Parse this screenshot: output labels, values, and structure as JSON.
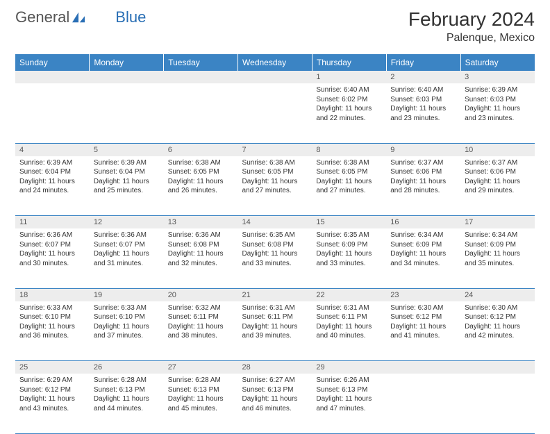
{
  "header": {
    "logo_text_1": "General",
    "logo_text_2": "Blue",
    "month_title": "February 2024",
    "location": "Palenque, Mexico"
  },
  "colors": {
    "header_bg": "#3b84c4",
    "header_text": "#ffffff",
    "daynum_bg": "#ededed",
    "border": "#3b84c4",
    "logo_blue": "#2a6fb5"
  },
  "weekday_labels": [
    "Sunday",
    "Monday",
    "Tuesday",
    "Wednesday",
    "Thursday",
    "Friday",
    "Saturday"
  ],
  "weeks": [
    {
      "days": [
        {
          "num": "",
          "sunrise": "",
          "sunset": "",
          "daylight": ""
        },
        {
          "num": "",
          "sunrise": "",
          "sunset": "",
          "daylight": ""
        },
        {
          "num": "",
          "sunrise": "",
          "sunset": "",
          "daylight": ""
        },
        {
          "num": "",
          "sunrise": "",
          "sunset": "",
          "daylight": ""
        },
        {
          "num": "1",
          "sunrise": "Sunrise: 6:40 AM",
          "sunset": "Sunset: 6:02 PM",
          "daylight": "Daylight: 11 hours and 22 minutes."
        },
        {
          "num": "2",
          "sunrise": "Sunrise: 6:40 AM",
          "sunset": "Sunset: 6:03 PM",
          "daylight": "Daylight: 11 hours and 23 minutes."
        },
        {
          "num": "3",
          "sunrise": "Sunrise: 6:39 AM",
          "sunset": "Sunset: 6:03 PM",
          "daylight": "Daylight: 11 hours and 23 minutes."
        }
      ]
    },
    {
      "days": [
        {
          "num": "4",
          "sunrise": "Sunrise: 6:39 AM",
          "sunset": "Sunset: 6:04 PM",
          "daylight": "Daylight: 11 hours and 24 minutes."
        },
        {
          "num": "5",
          "sunrise": "Sunrise: 6:39 AM",
          "sunset": "Sunset: 6:04 PM",
          "daylight": "Daylight: 11 hours and 25 minutes."
        },
        {
          "num": "6",
          "sunrise": "Sunrise: 6:38 AM",
          "sunset": "Sunset: 6:05 PM",
          "daylight": "Daylight: 11 hours and 26 minutes."
        },
        {
          "num": "7",
          "sunrise": "Sunrise: 6:38 AM",
          "sunset": "Sunset: 6:05 PM",
          "daylight": "Daylight: 11 hours and 27 minutes."
        },
        {
          "num": "8",
          "sunrise": "Sunrise: 6:38 AM",
          "sunset": "Sunset: 6:05 PM",
          "daylight": "Daylight: 11 hours and 27 minutes."
        },
        {
          "num": "9",
          "sunrise": "Sunrise: 6:37 AM",
          "sunset": "Sunset: 6:06 PM",
          "daylight": "Daylight: 11 hours and 28 minutes."
        },
        {
          "num": "10",
          "sunrise": "Sunrise: 6:37 AM",
          "sunset": "Sunset: 6:06 PM",
          "daylight": "Daylight: 11 hours and 29 minutes."
        }
      ]
    },
    {
      "days": [
        {
          "num": "11",
          "sunrise": "Sunrise: 6:36 AM",
          "sunset": "Sunset: 6:07 PM",
          "daylight": "Daylight: 11 hours and 30 minutes."
        },
        {
          "num": "12",
          "sunrise": "Sunrise: 6:36 AM",
          "sunset": "Sunset: 6:07 PM",
          "daylight": "Daylight: 11 hours and 31 minutes."
        },
        {
          "num": "13",
          "sunrise": "Sunrise: 6:36 AM",
          "sunset": "Sunset: 6:08 PM",
          "daylight": "Daylight: 11 hours and 32 minutes."
        },
        {
          "num": "14",
          "sunrise": "Sunrise: 6:35 AM",
          "sunset": "Sunset: 6:08 PM",
          "daylight": "Daylight: 11 hours and 33 minutes."
        },
        {
          "num": "15",
          "sunrise": "Sunrise: 6:35 AM",
          "sunset": "Sunset: 6:09 PM",
          "daylight": "Daylight: 11 hours and 33 minutes."
        },
        {
          "num": "16",
          "sunrise": "Sunrise: 6:34 AM",
          "sunset": "Sunset: 6:09 PM",
          "daylight": "Daylight: 11 hours and 34 minutes."
        },
        {
          "num": "17",
          "sunrise": "Sunrise: 6:34 AM",
          "sunset": "Sunset: 6:09 PM",
          "daylight": "Daylight: 11 hours and 35 minutes."
        }
      ]
    },
    {
      "days": [
        {
          "num": "18",
          "sunrise": "Sunrise: 6:33 AM",
          "sunset": "Sunset: 6:10 PM",
          "daylight": "Daylight: 11 hours and 36 minutes."
        },
        {
          "num": "19",
          "sunrise": "Sunrise: 6:33 AM",
          "sunset": "Sunset: 6:10 PM",
          "daylight": "Daylight: 11 hours and 37 minutes."
        },
        {
          "num": "20",
          "sunrise": "Sunrise: 6:32 AM",
          "sunset": "Sunset: 6:11 PM",
          "daylight": "Daylight: 11 hours and 38 minutes."
        },
        {
          "num": "21",
          "sunrise": "Sunrise: 6:31 AM",
          "sunset": "Sunset: 6:11 PM",
          "daylight": "Daylight: 11 hours and 39 minutes."
        },
        {
          "num": "22",
          "sunrise": "Sunrise: 6:31 AM",
          "sunset": "Sunset: 6:11 PM",
          "daylight": "Daylight: 11 hours and 40 minutes."
        },
        {
          "num": "23",
          "sunrise": "Sunrise: 6:30 AM",
          "sunset": "Sunset: 6:12 PM",
          "daylight": "Daylight: 11 hours and 41 minutes."
        },
        {
          "num": "24",
          "sunrise": "Sunrise: 6:30 AM",
          "sunset": "Sunset: 6:12 PM",
          "daylight": "Daylight: 11 hours and 42 minutes."
        }
      ]
    },
    {
      "days": [
        {
          "num": "25",
          "sunrise": "Sunrise: 6:29 AM",
          "sunset": "Sunset: 6:12 PM",
          "daylight": "Daylight: 11 hours and 43 minutes."
        },
        {
          "num": "26",
          "sunrise": "Sunrise: 6:28 AM",
          "sunset": "Sunset: 6:13 PM",
          "daylight": "Daylight: 11 hours and 44 minutes."
        },
        {
          "num": "27",
          "sunrise": "Sunrise: 6:28 AM",
          "sunset": "Sunset: 6:13 PM",
          "daylight": "Daylight: 11 hours and 45 minutes."
        },
        {
          "num": "28",
          "sunrise": "Sunrise: 6:27 AM",
          "sunset": "Sunset: 6:13 PM",
          "daylight": "Daylight: 11 hours and 46 minutes."
        },
        {
          "num": "29",
          "sunrise": "Sunrise: 6:26 AM",
          "sunset": "Sunset: 6:13 PM",
          "daylight": "Daylight: 11 hours and 47 minutes."
        },
        {
          "num": "",
          "sunrise": "",
          "sunset": "",
          "daylight": ""
        },
        {
          "num": "",
          "sunrise": "",
          "sunset": "",
          "daylight": ""
        }
      ]
    }
  ]
}
